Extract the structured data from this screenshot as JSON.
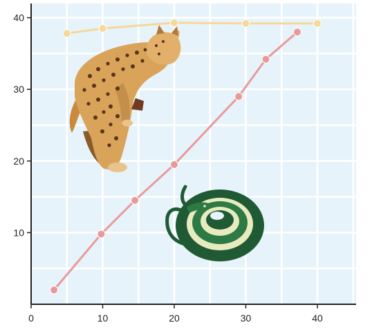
{
  "chart_data": {
    "type": "line",
    "title": "",
    "xlabel": "",
    "ylabel": "",
    "xlim": [
      0,
      45
    ],
    "ylim": [
      0,
      41
    ],
    "grid": true,
    "x_ticks": [
      "0",
      "10",
      "20",
      "30",
      "40"
    ],
    "y_ticks": [
      "10",
      "20",
      "30",
      "40"
    ],
    "series": [
      {
        "color": "#f5d89a",
        "points": [
          [
            5,
            37.8
          ],
          [
            10,
            38.5
          ],
          [
            20,
            39.3
          ],
          [
            30,
            39.2
          ],
          [
            40,
            39.2
          ]
        ]
      },
      {
        "color": "#e89a9a",
        "points": [
          [
            3.2,
            2
          ],
          [
            9.8,
            9.8
          ],
          [
            14.5,
            14.5
          ],
          [
            20,
            19.5
          ],
          [
            29,
            29
          ],
          [
            32.8,
            34.2
          ],
          [
            37.2,
            38
          ]
        ]
      }
    ],
    "illustrations": [
      "bobcat-illustration",
      "snake-illustration"
    ],
    "colors": {
      "plot_bg": "#e7f3fa",
      "grid": "#ffffff",
      "axis": "#222222"
    }
  }
}
